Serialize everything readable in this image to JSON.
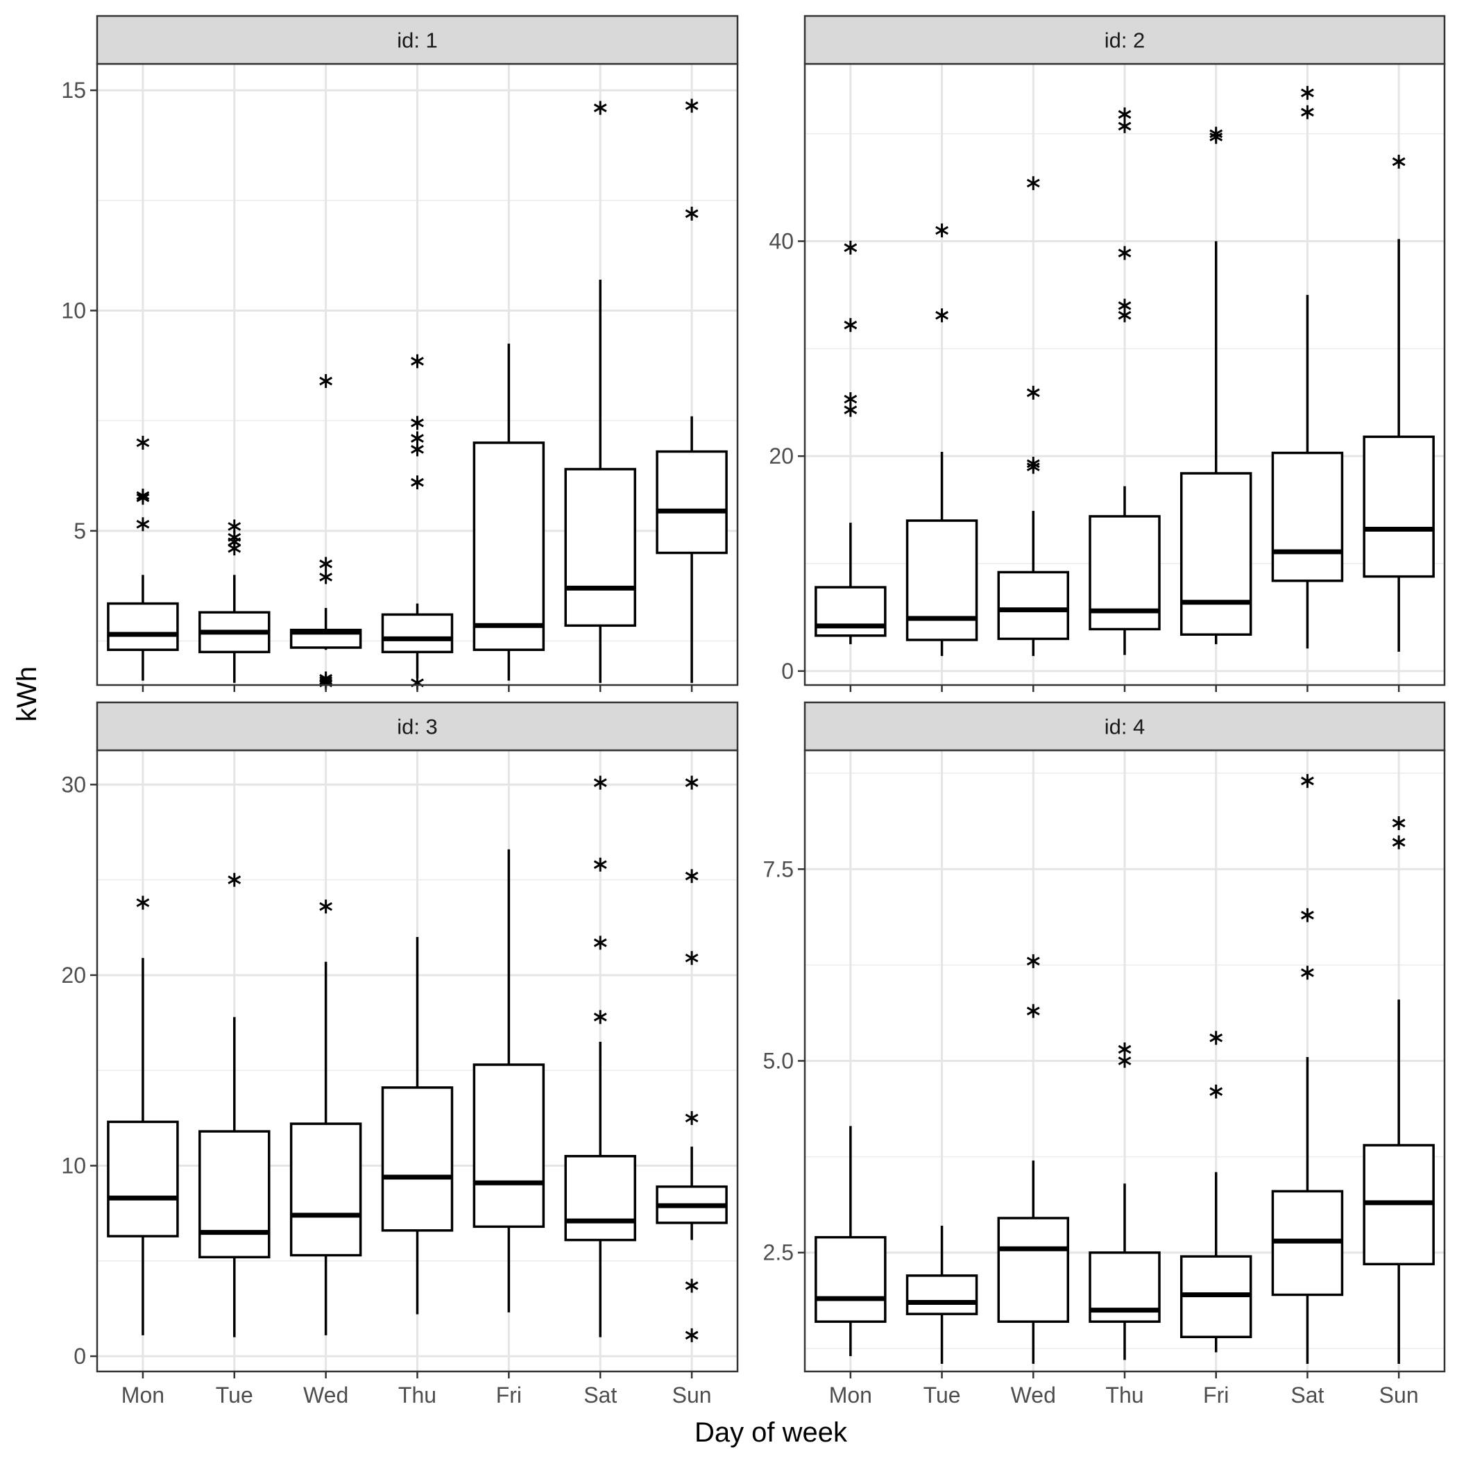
{
  "chart_data": {
    "type": "boxplot",
    "layout": "facet grid 2x2",
    "xlabel": "Day of week",
    "ylabel": "kWh",
    "categories": [
      "Mon",
      "Tue",
      "Wed",
      "Thu",
      "Fri",
      "Sat",
      "Sun"
    ],
    "outlier_marker": "asterisk",
    "grid": true,
    "facets": [
      {
        "strip": "id: 1",
        "ylim": [
          1.5,
          15.6
        ],
        "yticks": [
          5,
          10,
          15
        ],
        "tick_labels": [
          "5",
          "10",
          "15"
        ],
        "minor_yticks": [
          2.5,
          7.5,
          12.5
        ],
        "boxes": [
          {
            "lower_whisker": 1.6,
            "q1": 2.3,
            "median": 2.65,
            "q3": 3.35,
            "upper_whisker": 4.0,
            "outliers": [
              5.15,
              5.75,
              5.8,
              7.0
            ]
          },
          {
            "lower_whisker": 1.55,
            "q1": 2.25,
            "median": 2.7,
            "q3": 3.15,
            "upper_whisker": 4.0,
            "outliers": [
              4.6,
              4.75,
              4.85,
              5.1
            ]
          },
          {
            "lower_whisker": 2.3,
            "q1": 2.35,
            "median": 2.7,
            "q3": 2.75,
            "upper_whisker": 3.25,
            "outliers": [
              1.55,
              1.6,
              1.65,
              3.95,
              4.25,
              8.4
            ]
          },
          {
            "lower_whisker": 1.65,
            "q1": 2.25,
            "median": 2.55,
            "q3": 3.1,
            "upper_whisker": 3.35,
            "outliers": [
              1.55,
              6.1,
              6.85,
              7.1,
              7.45,
              8.85
            ]
          },
          {
            "lower_whisker": 1.6,
            "q1": 2.3,
            "median": 2.85,
            "q3": 7.0,
            "upper_whisker": 9.25,
            "outliers": []
          },
          {
            "lower_whisker": 1.55,
            "q1": 2.85,
            "median": 3.7,
            "q3": 6.4,
            "upper_whisker": 10.7,
            "outliers": [
              14.6
            ]
          },
          {
            "lower_whisker": 1.55,
            "q1": 4.5,
            "median": 5.45,
            "q3": 6.8,
            "upper_whisker": 7.6,
            "outliers": [
              12.2,
              14.65
            ]
          }
        ]
      },
      {
        "strip": "id: 2",
        "ylim": [
          -1.3,
          56.5
        ],
        "yticks": [
          0,
          20,
          40
        ],
        "tick_labels": [
          "0",
          "20",
          "40"
        ],
        "minor_yticks": [
          10,
          30,
          50
        ],
        "boxes": [
          {
            "lower_whisker": 2.5,
            "q1": 3.3,
            "median": 4.2,
            "q3": 7.8,
            "upper_whisker": 13.8,
            "outliers": [
              24.3,
              25.3,
              32.2,
              39.4
            ]
          },
          {
            "lower_whisker": 1.4,
            "q1": 2.9,
            "median": 4.9,
            "q3": 14.0,
            "upper_whisker": 20.4,
            "outliers": [
              33.1,
              41.0
            ]
          },
          {
            "lower_whisker": 1.4,
            "q1": 3.0,
            "median": 5.7,
            "q3": 9.2,
            "upper_whisker": 14.9,
            "outliers": [
              19.0,
              19.3,
              25.9,
              45.4
            ]
          },
          {
            "lower_whisker": 1.5,
            "q1": 3.9,
            "median": 5.6,
            "q3": 14.4,
            "upper_whisker": 17.2,
            "outliers": [
              33.1,
              34.0,
              38.9,
              50.7,
              51.8
            ]
          },
          {
            "lower_whisker": 2.5,
            "q1": 3.4,
            "median": 6.4,
            "q3": 18.4,
            "upper_whisker": 40.0,
            "outliers": [
              49.7,
              50.0
            ]
          },
          {
            "lower_whisker": 2.1,
            "q1": 8.4,
            "median": 11.1,
            "q3": 20.3,
            "upper_whisker": 35.0,
            "outliers": [
              52.0,
              53.8
            ]
          },
          {
            "lower_whisker": 1.8,
            "q1": 8.8,
            "median": 13.2,
            "q3": 21.8,
            "upper_whisker": 40.2,
            "outliers": [
              47.4
            ]
          }
        ]
      },
      {
        "strip": "id: 3",
        "ylim": [
          -0.8,
          31.8
        ],
        "yticks": [
          0,
          10,
          20,
          30
        ],
        "tick_labels": [
          "0",
          "10",
          "20",
          "30"
        ],
        "minor_yticks": [
          5,
          15,
          25
        ],
        "boxes": [
          {
            "lower_whisker": 1.1,
            "q1": 6.3,
            "median": 8.3,
            "q3": 12.3,
            "upper_whisker": 20.9,
            "outliers": [
              23.8
            ]
          },
          {
            "lower_whisker": 1.0,
            "q1": 5.2,
            "median": 6.5,
            "q3": 11.8,
            "upper_whisker": 17.8,
            "outliers": [
              25.0
            ]
          },
          {
            "lower_whisker": 1.1,
            "q1": 5.3,
            "median": 7.4,
            "q3": 12.2,
            "upper_whisker": 20.7,
            "outliers": [
              23.6
            ]
          },
          {
            "lower_whisker": 2.2,
            "q1": 6.6,
            "median": 9.4,
            "q3": 14.1,
            "upper_whisker": 22.0,
            "outliers": []
          },
          {
            "lower_whisker": 2.3,
            "q1": 6.8,
            "median": 9.1,
            "q3": 15.3,
            "upper_whisker": 26.6,
            "outliers": []
          },
          {
            "lower_whisker": 1.0,
            "q1": 6.1,
            "median": 7.1,
            "q3": 10.5,
            "upper_whisker": 16.5,
            "outliers": [
              17.8,
              21.7,
              25.8,
              30.1
            ]
          },
          {
            "lower_whisker": 6.1,
            "q1": 7.0,
            "median": 7.9,
            "q3": 8.9,
            "upper_whisker": 11.0,
            "outliers": [
              1.1,
              3.7,
              12.5,
              20.9,
              25.2,
              30.1
            ]
          }
        ]
      },
      {
        "strip": "id: 4",
        "ylim": [
          0.95,
          9.05
        ],
        "yticks": [
          2.5,
          5.0,
          7.5
        ],
        "tick_labels": [
          "2.5",
          "5.0",
          "7.5"
        ],
        "minor_yticks": [
          1.25,
          3.75,
          6.25,
          8.75
        ],
        "boxes": [
          {
            "lower_whisker": 1.15,
            "q1": 1.6,
            "median": 1.9,
            "q3": 2.7,
            "upper_whisker": 4.15,
            "outliers": []
          },
          {
            "lower_whisker": 1.05,
            "q1": 1.7,
            "median": 1.85,
            "q3": 2.2,
            "upper_whisker": 2.85,
            "outliers": []
          },
          {
            "lower_whisker": 1.05,
            "q1": 1.6,
            "median": 2.55,
            "q3": 2.95,
            "upper_whisker": 3.7,
            "outliers": [
              5.65,
              6.3
            ]
          },
          {
            "lower_whisker": 1.1,
            "q1": 1.6,
            "median": 1.75,
            "q3": 2.5,
            "upper_whisker": 3.4,
            "outliers": [
              5.0,
              5.15
            ]
          },
          {
            "lower_whisker": 1.2,
            "q1": 1.4,
            "median": 1.95,
            "q3": 2.45,
            "upper_whisker": 3.55,
            "outliers": [
              4.6,
              5.3
            ]
          },
          {
            "lower_whisker": 1.05,
            "q1": 1.95,
            "median": 2.65,
            "q3": 3.3,
            "upper_whisker": 5.05,
            "outliers": [
              6.15,
              6.9,
              8.65
            ]
          },
          {
            "lower_whisker": 1.05,
            "q1": 2.35,
            "median": 3.15,
            "q3": 3.9,
            "upper_whisker": 5.8,
            "outliers": [
              7.85,
              8.1
            ]
          }
        ]
      }
    ]
  }
}
